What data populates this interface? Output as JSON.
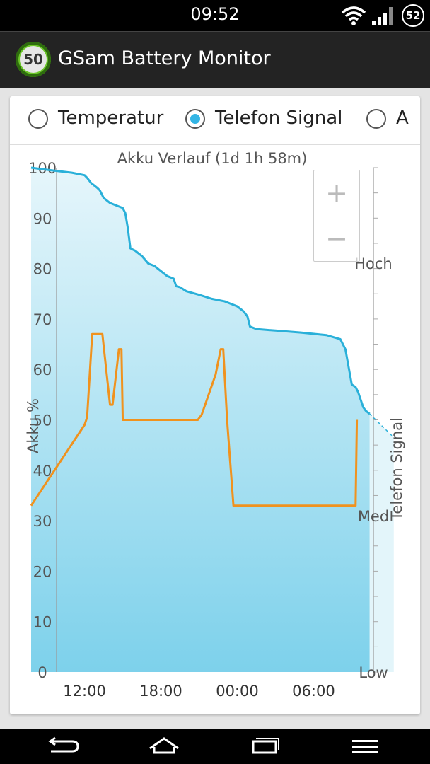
{
  "status_bar": {
    "time": "09:52",
    "battery": "52"
  },
  "app": {
    "title": "GSam Battery Monitor",
    "logo_value": "50"
  },
  "tabs": [
    {
      "label": "Temperatur",
      "checked": false
    },
    {
      "label": "Telefon Signal",
      "checked": true
    },
    {
      "label": "A",
      "checked": false
    }
  ],
  "zoom": {
    "in": "+",
    "out": "−"
  },
  "nav": {
    "back": "back-icon",
    "home": "home-icon",
    "recents": "recents-icon",
    "menu": "menu-icon"
  },
  "colors": {
    "battery_line": "#2ab0d9",
    "signal_line": "#f0921e",
    "fill_top": "#e6f6fb",
    "fill_bottom": "#7dd1eb"
  },
  "chart_data": {
    "type": "line",
    "title": "Akku Verlauf (1d 1h 58m)",
    "ylabel": "Akku %",
    "y2label": "Telefon Signal",
    "ylim": [
      0,
      100
    ],
    "y_ticks": [
      "100",
      "90",
      "80",
      "70",
      "60",
      "50",
      "40",
      "30",
      "20",
      "10",
      "0"
    ],
    "y2_ticks": [
      "Hoch",
      "Med",
      "Low"
    ],
    "x_ticks": [
      "12:00",
      "18:00",
      "00:00",
      "06:00"
    ],
    "xlim": [
      7.8,
      33.7
    ],
    "series": [
      {
        "name": "Akku %",
        "points": [
          [
            7.8,
            100
          ],
          [
            9,
            99.6
          ],
          [
            10,
            99.3
          ],
          [
            11,
            99
          ],
          [
            12,
            98.5
          ],
          [
            12.2,
            98
          ],
          [
            12.5,
            97
          ],
          [
            13,
            96
          ],
          [
            13.2,
            95.5
          ],
          [
            13.5,
            94
          ],
          [
            14,
            93
          ],
          [
            14.5,
            92.5
          ],
          [
            15,
            92
          ],
          [
            15.2,
            91
          ],
          [
            15.4,
            88
          ],
          [
            15.6,
            84
          ],
          [
            16,
            83.5
          ],
          [
            16.5,
            82.5
          ],
          [
            17,
            81
          ],
          [
            17.5,
            80.5
          ],
          [
            18,
            79.5
          ],
          [
            18.5,
            78.5
          ],
          [
            19,
            78
          ],
          [
            19.2,
            76.5
          ],
          [
            19.5,
            76.3
          ],
          [
            20,
            75.5
          ],
          [
            21,
            74.8
          ],
          [
            22,
            74
          ],
          [
            23,
            73.5
          ],
          [
            23.5,
            73
          ],
          [
            24,
            72.5
          ],
          [
            24.5,
            71.5
          ],
          [
            24.8,
            70.5
          ],
          [
            25,
            68.5
          ],
          [
            25.5,
            68
          ],
          [
            27,
            67.7
          ],
          [
            29,
            67.3
          ],
          [
            31,
            66.8
          ],
          [
            32.1,
            66
          ],
          [
            32.5,
            64
          ],
          [
            33,
            57
          ],
          [
            33.3,
            56.5
          ],
          [
            33.5,
            55.5
          ],
          [
            33.9,
            52.5
          ],
          [
            34.1,
            51.8
          ],
          [
            34.4,
            51.2
          ]
        ],
        "projection": [
          [
            34.4,
            51.2
          ],
          [
            36.3,
            46.5
          ]
        ]
      },
      {
        "name": "Telefon Signal",
        "points": [
          [
            7.8,
            33
          ],
          [
            12,
            49
          ],
          [
            12.2,
            50.5
          ],
          [
            12.6,
            67
          ],
          [
            13.4,
            67
          ],
          [
            14,
            53
          ],
          [
            14.2,
            53
          ],
          [
            14.7,
            64
          ],
          [
            14.9,
            64
          ],
          [
            15,
            50
          ],
          [
            20.9,
            50
          ],
          [
            21.2,
            51
          ],
          [
            22.3,
            59
          ],
          [
            22.7,
            64
          ],
          [
            22.9,
            64
          ],
          [
            23.2,
            50
          ],
          [
            23.7,
            33
          ],
          [
            33.2,
            33
          ],
          [
            33.3,
            33
          ],
          [
            33.4,
            50
          ]
        ]
      }
    ]
  }
}
